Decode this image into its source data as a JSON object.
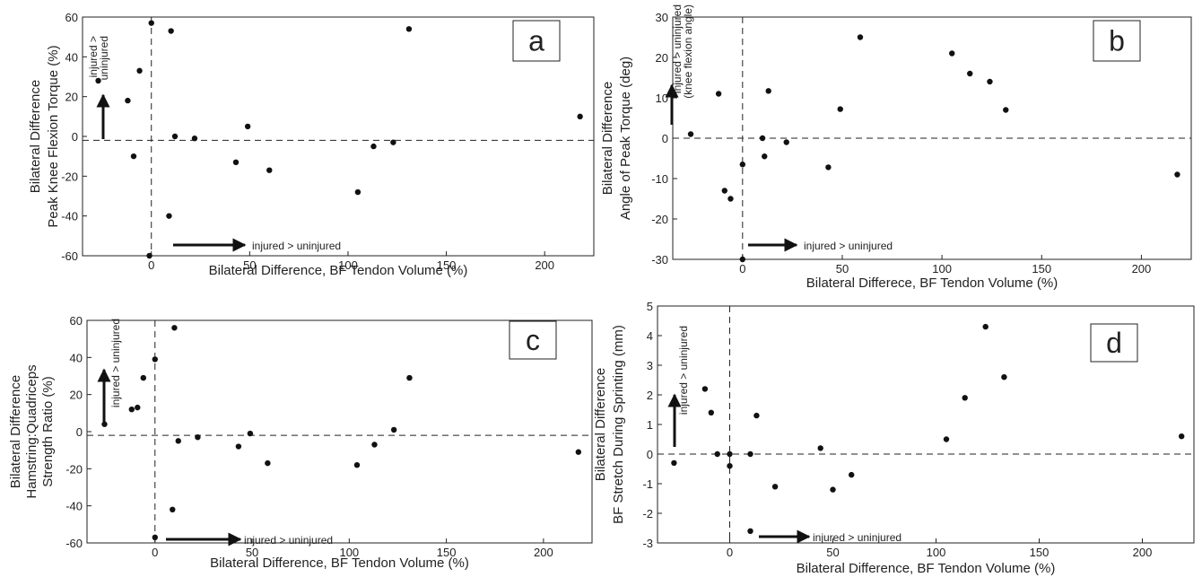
{
  "figure": {
    "colors": {
      "ink": "#222222",
      "marker": "#111111",
      "background": "#ffffff"
    }
  },
  "chart_data": [
    {
      "type": "scatter",
      "panel_label": "a",
      "xlabel": "Bilateral Difference, BF Tendon Volume (%)",
      "ylabel": [
        "Bilateral Difference",
        "Peak Knee Flexion Torque (%)"
      ],
      "xlim": [
        -35,
        225
      ],
      "ylim": [
        -60,
        60
      ],
      "xticks": [
        0,
        50,
        100,
        150,
        200
      ],
      "yticks": [
        -60,
        -40,
        -20,
        0,
        20,
        40,
        60
      ],
      "xtick_labels": [
        "0",
        "50",
        "100",
        "150",
        "200"
      ],
      "ytick_labels": [
        "-60",
        "-40",
        "-20",
        "0",
        "20",
        "40",
        "60"
      ],
      "grid": false,
      "reference_lines": {
        "horizontal_y": -2,
        "vertical_x": 0
      },
      "annotations": {
        "x_arrow": "injured > uninjured",
        "y_arrow": [
          "injured >",
          "uninjured"
        ]
      },
      "points": [
        [
          -27,
          28
        ],
        [
          -12,
          18
        ],
        [
          -9,
          -10
        ],
        [
          -6,
          33
        ],
        [
          0,
          57
        ],
        [
          -1,
          -60
        ],
        [
          10,
          53
        ],
        [
          9,
          -40
        ],
        [
          12,
          0
        ],
        [
          22,
          -1
        ],
        [
          43,
          -13
        ],
        [
          49,
          5
        ],
        [
          60,
          -17
        ],
        [
          105,
          -28
        ],
        [
          113,
          -5
        ],
        [
          123,
          -3
        ],
        [
          131,
          54
        ],
        [
          218,
          10
        ]
      ]
    },
    {
      "type": "scatter",
      "panel_label": "b",
      "xlabel": "Bilateral Differece, BF Tendon Volume (%)",
      "ylabel": [
        "Bilateral Difference",
        "Angle of Peak Torque (deg)"
      ],
      "xlim": [
        -35,
        225
      ],
      "ylim": [
        -30,
        30
      ],
      "xticks": [
        0,
        50,
        100,
        150,
        200
      ],
      "yticks": [
        -30,
        -20,
        -10,
        0,
        10,
        20,
        30
      ],
      "xtick_labels": [
        "0",
        "50",
        "100",
        "150",
        "200"
      ],
      "ytick_labels": [
        "-30",
        "-20",
        "-10",
        "0",
        "10",
        "20",
        "30"
      ],
      "grid": false,
      "reference_lines": {
        "horizontal_y": 0,
        "vertical_x": 0
      },
      "annotations": {
        "x_arrow": "injured > uninjured",
        "y_arrow": [
          "injured > uninjured",
          "(knee flexion angle)"
        ]
      },
      "points": [
        [
          -26,
          1
        ],
        [
          -12,
          11
        ],
        [
          -9,
          -13
        ],
        [
          -6,
          -15
        ],
        [
          0,
          -6.5
        ],
        [
          0,
          -30
        ],
        [
          10,
          0
        ],
        [
          11,
          -4.5
        ],
        [
          13,
          11.7
        ],
        [
          22,
          -1
        ],
        [
          43,
          -7.2
        ],
        [
          49,
          7.2
        ],
        [
          59,
          25
        ],
        [
          105,
          21
        ],
        [
          114,
          16
        ],
        [
          124,
          14
        ],
        [
          132,
          7
        ],
        [
          218,
          -9
        ]
      ]
    },
    {
      "type": "scatter",
      "panel_label": "c",
      "xlabel": "Bilateral Difference, BF Tendon Volume (%)",
      "ylabel": [
        "Bilateral Difference",
        "Hamstring:Quadriceps",
        "Strength Ratio (%)"
      ],
      "xlim": [
        -35,
        225
      ],
      "ylim": [
        -60,
        60
      ],
      "xticks": [
        0,
        50,
        100,
        150,
        200
      ],
      "yticks": [
        -60,
        -40,
        -20,
        0,
        20,
        40,
        60
      ],
      "xtick_labels": [
        "0",
        "50",
        "100",
        "150",
        "200"
      ],
      "ytick_labels": [
        "-60",
        "-40",
        "-20",
        "0",
        "20",
        "40",
        "60"
      ],
      "grid": false,
      "reference_lines": {
        "horizontal_y": -2,
        "vertical_x": 0
      },
      "annotations": {
        "x_arrow": "injured > uninjured",
        "y_arrow": [
          "injured > uninjured"
        ]
      },
      "points": [
        [
          -26,
          4
        ],
        [
          -12,
          12
        ],
        [
          -9,
          13
        ],
        [
          -6,
          29
        ],
        [
          0,
          39
        ],
        [
          0,
          -57
        ],
        [
          10,
          56
        ],
        [
          9,
          -42
        ],
        [
          12,
          -5
        ],
        [
          22,
          -3
        ],
        [
          43,
          -8
        ],
        [
          49,
          -1
        ],
        [
          58,
          -17
        ],
        [
          104,
          -18
        ],
        [
          113,
          -7
        ],
        [
          123,
          1
        ],
        [
          131,
          29
        ],
        [
          218,
          -11
        ]
      ]
    },
    {
      "type": "scatter",
      "panel_label": "d",
      "xlabel": "Bilateral Difference, BF Tendon Volume (%)",
      "ylabel": [
        "Bilateral Difference",
        "BF Stretch During Sprinting (mm)"
      ],
      "xlim": [
        -35,
        225
      ],
      "ylim": [
        -3,
        5
      ],
      "xticks": [
        0,
        50,
        100,
        150,
        200
      ],
      "yticks": [
        -3,
        -2,
        -1,
        0,
        1,
        2,
        3,
        4,
        5
      ],
      "xtick_labels": [
        "0",
        "50",
        "100",
        "150",
        "200"
      ],
      "ytick_labels": [
        "-3",
        "-2",
        "-1",
        "0",
        "1",
        "2",
        "3",
        "4",
        "5"
      ],
      "grid": false,
      "reference_lines": {
        "horizontal_y": 0,
        "vertical_x": 0
      },
      "annotations": {
        "x_arrow": "injured > uninjured",
        "y_arrow": [
          "injured > uninjured"
        ]
      },
      "points": [
        [
          -27,
          -0.3
        ],
        [
          -12,
          2.2
        ],
        [
          -9,
          1.4
        ],
        [
          -6,
          0
        ],
        [
          0,
          0
        ],
        [
          0,
          -0.4
        ],
        [
          10,
          -2.6
        ],
        [
          10,
          0
        ],
        [
          13,
          1.3
        ],
        [
          22,
          -1.1
        ],
        [
          44,
          0.2
        ],
        [
          50,
          -1.2
        ],
        [
          59,
          -0.7
        ],
        [
          105,
          0.5
        ],
        [
          114,
          1.9
        ],
        [
          124,
          4.3
        ],
        [
          133,
          2.6
        ],
        [
          219,
          0.6
        ]
      ]
    }
  ]
}
